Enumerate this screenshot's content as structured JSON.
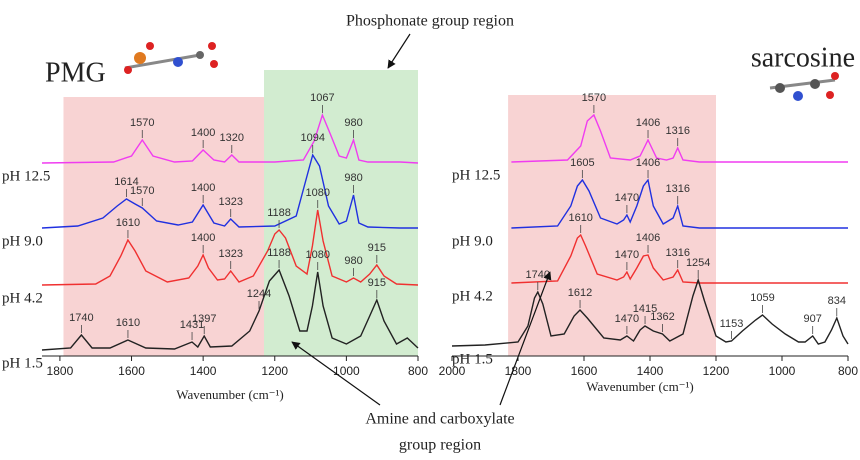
{
  "chart_data": [
    {
      "type": "line",
      "title": "PMG",
      "x_label": "Wavenumber (cm⁻¹)",
      "annotation": "Phosphonate group region",
      "xlim": [
        1850,
        800
      ],
      "xticks": [
        1800,
        1600,
        1400,
        1200,
        1000,
        800
      ],
      "ylim": [
        0,
        300
      ],
      "regions": [
        {
          "from": 1790,
          "to": 1230,
          "color": "#f8d3d3"
        },
        {
          "from": 1230,
          "to": 800,
          "color": "#d2ecd0"
        }
      ],
      "series": [
        {
          "name": "pH 12.5",
          "color": "#f03cf0",
          "peaks": [
            1570,
            1400,
            1320,
            1067,
            980
          ],
          "x": [
            1850,
            1650,
            1600,
            1570,
            1540,
            1480,
            1430,
            1400,
            1370,
            1340,
            1320,
            1300,
            1200,
            1120,
            1090,
            1067,
            1045,
            1020,
            1000,
            980,
            965,
            940,
            850,
            800
          ],
          "values": [
            193,
            194,
            200,
            216,
            200,
            194,
            195,
            206,
            196,
            194,
            201,
            194,
            194,
            196,
            215,
            241,
            222,
            200,
            198,
            216,
            196,
            194,
            194,
            193
          ]
        },
        {
          "name": "pH 9.0",
          "color": "#2030e0",
          "peaks": [
            1614,
            1570,
            1400,
            1323,
            1094,
            980
          ],
          "x": [
            1850,
            1750,
            1680,
            1640,
            1614,
            1590,
            1570,
            1530,
            1470,
            1430,
            1400,
            1370,
            1340,
            1323,
            1300,
            1200,
            1140,
            1110,
            1094,
            1075,
            1050,
            1020,
            1000,
            980,
            965,
            940,
            850,
            800
          ],
          "values": [
            128,
            130,
            138,
            150,
            157,
            152,
            148,
            135,
            131,
            134,
            151,
            133,
            130,
            137,
            129,
            130,
            140,
            180,
            201,
            190,
            150,
            132,
            135,
            161,
            133,
            129,
            128,
            128
          ]
        },
        {
          "name": "pH 4.2",
          "color": "#f03030",
          "peaks": [
            1610,
            1400,
            1323,
            1188,
            1080,
            980,
            915
          ],
          "x": [
            1850,
            1700,
            1660,
            1630,
            1610,
            1590,
            1560,
            1500,
            1440,
            1415,
            1400,
            1385,
            1360,
            1340,
            1323,
            1300,
            1260,
            1220,
            1200,
            1188,
            1170,
            1140,
            1110,
            1095,
            1080,
            1065,
            1040,
            1000,
            980,
            960,
            935,
            915,
            895,
            860,
            800
          ],
          "values": [
            71,
            72,
            80,
            100,
            116,
            105,
            85,
            74,
            78,
            90,
            101,
            88,
            76,
            77,
            85,
            74,
            80,
            105,
            122,
            126,
            118,
            90,
            82,
            110,
            146,
            115,
            80,
            74,
            78,
            74,
            82,
            91,
            80,
            72,
            71
          ]
        },
        {
          "name": "pH 1.5",
          "color": "#222222",
          "peaks": [
            1740,
            1610,
            1431,
            1397,
            1244,
            1188,
            1080,
            915
          ],
          "x": [
            1850,
            1770,
            1740,
            1710,
            1660,
            1610,
            1560,
            1480,
            1431,
            1415,
            1397,
            1380,
            1320,
            1270,
            1244,
            1215,
            1188,
            1160,
            1130,
            1110,
            1095,
            1080,
            1065,
            1040,
            1000,
            960,
            935,
            915,
            895,
            860,
            830,
            800
          ],
          "values": [
            6,
            8,
            21,
            8,
            8,
            16,
            8,
            7,
            14,
            9,
            20,
            9,
            10,
            25,
            45,
            75,
            86,
            60,
            25,
            25,
            50,
            84,
            50,
            18,
            12,
            20,
            40,
            56,
            35,
            12,
            18,
            8
          ]
        }
      ]
    },
    {
      "type": "line",
      "title": "sarcosine",
      "x_label": "Wavenumber (cm⁻¹)",
      "annotation": [
        "Amine and carboxylate",
        "group region"
      ],
      "xlim": [
        2000,
        800
      ],
      "xticks": [
        2000,
        1800,
        1600,
        1400,
        1200,
        1000,
        800
      ],
      "ylim": [
        0,
        300
      ],
      "regions": [
        {
          "from": 1830,
          "to": 1200,
          "color": "#f8d3d3"
        }
      ],
      "series": [
        {
          "name": "pH 12.5",
          "color": "#f03cf0",
          "peaks": [
            1570,
            1406,
            1316
          ],
          "x": [
            1820,
            1650,
            1610,
            1590,
            1570,
            1550,
            1520,
            1460,
            1430,
            1406,
            1380,
            1350,
            1330,
            1316,
            1300,
            1250,
            1100,
            800
          ],
          "values": [
            194,
            196,
            210,
            235,
            241,
            225,
            198,
            196,
            200,
            216,
            198,
            196,
            198,
            208,
            196,
            194,
            194,
            194
          ]
        },
        {
          "name": "pH 9.0",
          "color": "#2030e0",
          "peaks": [
            1605,
            1470,
            1406,
            1316
          ],
          "x": [
            1820,
            1680,
            1640,
            1620,
            1605,
            1585,
            1550,
            1500,
            1480,
            1470,
            1460,
            1440,
            1420,
            1406,
            1390,
            1360,
            1330,
            1316,
            1300,
            1250,
            800
          ],
          "values": [
            128,
            130,
            150,
            170,
            176,
            165,
            138,
            132,
            136,
            141,
            134,
            150,
            170,
            176,
            150,
            132,
            138,
            150,
            130,
            128,
            128
          ]
        },
        {
          "name": "pH 4.2",
          "color": "#f03030",
          "peaks": [
            1610,
            1470,
            1406,
            1316
          ],
          "x": [
            1820,
            1680,
            1640,
            1620,
            1610,
            1595,
            1560,
            1500,
            1480,
            1470,
            1460,
            1440,
            1420,
            1406,
            1390,
            1360,
            1330,
            1316,
            1300,
            1250,
            800
          ],
          "values": [
            73,
            75,
            100,
            118,
            121,
            110,
            82,
            76,
            79,
            84,
            77,
            88,
            100,
            101,
            88,
            76,
            79,
            86,
            74,
            73,
            73
          ]
        },
        {
          "name": "pH 1.5",
          "color": "#222222",
          "peaks": [
            1740,
            1612,
            1470,
            1415,
            1362,
            1254,
            1153,
            1059,
            907,
            834
          ],
          "x": [
            2000,
            1900,
            1800,
            1770,
            1750,
            1740,
            1725,
            1700,
            1660,
            1630,
            1612,
            1590,
            1540,
            1490,
            1470,
            1450,
            1430,
            1415,
            1390,
            1362,
            1340,
            1300,
            1270,
            1254,
            1235,
            1200,
            1170,
            1153,
            1120,
            1080,
            1059,
            1030,
            990,
            950,
            930,
            907,
            890,
            870,
            850,
            834,
            815,
            800
          ],
          "values": [
            10,
            11,
            14,
            30,
            58,
            64,
            52,
            20,
            22,
            40,
            46,
            38,
            18,
            16,
            20,
            15,
            26,
            30,
            25,
            22,
            15,
            22,
            60,
            76,
            55,
            20,
            14,
            15,
            25,
            36,
            41,
            32,
            22,
            14,
            14,
            20,
            12,
            14,
            26,
            38,
            20,
            12
          ]
        }
      ]
    }
  ]
}
